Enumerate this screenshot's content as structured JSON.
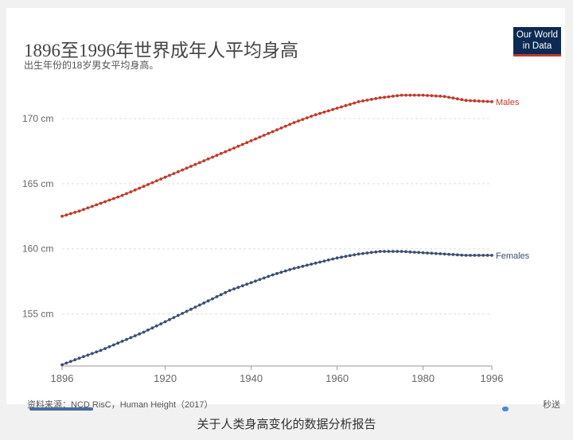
{
  "logo": {
    "line1": "Our World",
    "line2": "in Data",
    "colors": {
      "background": "#0d2a52",
      "stripe": "#c0392b"
    }
  },
  "source": "资料来源：NCD RisC，Human Height（2017）",
  "timeline": {
    "right_label": "秒送"
  },
  "caption": "关于人类身高变化的数据分析报告",
  "chart_data": {
    "type": "line",
    "title": "1896至1996年世界成年人平均身高",
    "subtitle": "出生年份的18岁男女平均身高。",
    "xlabel": "",
    "ylabel": "",
    "xlim": [
      1896,
      1996
    ],
    "ylim": [
      151,
      173
    ],
    "x_ticks": [
      "1896",
      "1920",
      "1940",
      "1960",
      "1980",
      "1996"
    ],
    "y_ticks": [
      "155 cm",
      "160 cm",
      "165 cm",
      "170 cm"
    ],
    "grid": true,
    "legend": "inline labels at line ends",
    "series": [
      {
        "name": "Males",
        "color": "#c0392b",
        "points": [
          [
            1896,
            162.5
          ],
          [
            1900,
            162.9
          ],
          [
            1905,
            163.5
          ],
          [
            1910,
            164.1
          ],
          [
            1915,
            164.8
          ],
          [
            1920,
            165.5
          ],
          [
            1925,
            166.2
          ],
          [
            1930,
            166.9
          ],
          [
            1935,
            167.6
          ],
          [
            1940,
            168.3
          ],
          [
            1945,
            169.0
          ],
          [
            1950,
            169.7
          ],
          [
            1955,
            170.3
          ],
          [
            1960,
            170.8
          ],
          [
            1965,
            171.3
          ],
          [
            1970,
            171.6
          ],
          [
            1975,
            171.8
          ],
          [
            1980,
            171.8
          ],
          [
            1985,
            171.7
          ],
          [
            1990,
            171.4
          ],
          [
            1996,
            171.3
          ]
        ]
      },
      {
        "name": "Females",
        "color": "#3d4f6e",
        "points": [
          [
            1896,
            151.1
          ],
          [
            1900,
            151.6
          ],
          [
            1905,
            152.2
          ],
          [
            1910,
            152.9
          ],
          [
            1915,
            153.6
          ],
          [
            1920,
            154.4
          ],
          [
            1925,
            155.2
          ],
          [
            1930,
            156.0
          ],
          [
            1935,
            156.8
          ],
          [
            1940,
            157.4
          ],
          [
            1945,
            158.0
          ],
          [
            1950,
            158.5
          ],
          [
            1955,
            158.9
          ],
          [
            1960,
            159.3
          ],
          [
            1965,
            159.6
          ],
          [
            1970,
            159.8
          ],
          [
            1975,
            159.8
          ],
          [
            1980,
            159.7
          ],
          [
            1985,
            159.6
          ],
          [
            1990,
            159.5
          ],
          [
            1996,
            159.5
          ]
        ]
      }
    ]
  }
}
